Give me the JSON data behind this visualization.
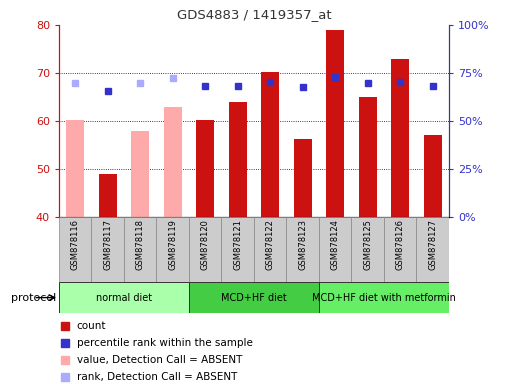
{
  "title": "GDS4883 / 1419357_at",
  "samples": [
    "GSM878116",
    "GSM878117",
    "GSM878118",
    "GSM878119",
    "GSM878120",
    "GSM878121",
    "GSM878122",
    "GSM878123",
    "GSM878124",
    "GSM878125",
    "GSM878126",
    "GSM878127"
  ],
  "bar_values": [
    60.2,
    49.0,
    58.0,
    63.0,
    60.2,
    64.0,
    70.2,
    56.2,
    79.0,
    65.0,
    73.0,
    57.0
  ],
  "bar_colors": [
    "#ffaaaa",
    "#cc1111",
    "#ffaaaa",
    "#ffaaaa",
    "#cc1111",
    "#cc1111",
    "#cc1111",
    "#cc1111",
    "#cc1111",
    "#cc1111",
    "#cc1111",
    "#cc1111"
  ],
  "dot_values": [
    68.0,
    66.2,
    68.0,
    69.0,
    67.2,
    67.2,
    68.2,
    67.0,
    69.2,
    68.0,
    68.2,
    67.2
  ],
  "dot_colors": [
    "#aaaaff",
    "#3333cc",
    "#aaaaff",
    "#aaaaff",
    "#3333cc",
    "#3333cc",
    "#3333cc",
    "#3333cc",
    "#3333cc",
    "#3333cc",
    "#3333cc",
    "#3333cc"
  ],
  "ylim": [
    40,
    80
  ],
  "yticks_left": [
    40,
    50,
    60,
    70,
    80
  ],
  "yticks_right": [
    0,
    25,
    50,
    75,
    100
  ],
  "protocols": [
    {
      "label": "normal diet",
      "start": 0,
      "end": 4,
      "color": "#aaffaa"
    },
    {
      "label": "MCD+HF diet",
      "start": 4,
      "end": 8,
      "color": "#44cc44"
    },
    {
      "label": "MCD+HF diet with metformin",
      "start": 8,
      "end": 12,
      "color": "#66ee66"
    }
  ],
  "legend_items": [
    {
      "label": "count",
      "color": "#cc1111"
    },
    {
      "label": "percentile rank within the sample",
      "color": "#3333cc"
    },
    {
      "label": "value, Detection Call = ABSENT",
      "color": "#ffaaaa"
    },
    {
      "label": "rank, Detection Call = ABSENT",
      "color": "#aaaaff"
    }
  ],
  "left_color": "#cc1111",
  "right_color": "#3333cc",
  "title_color": "#333333",
  "bar_width": 0.55
}
